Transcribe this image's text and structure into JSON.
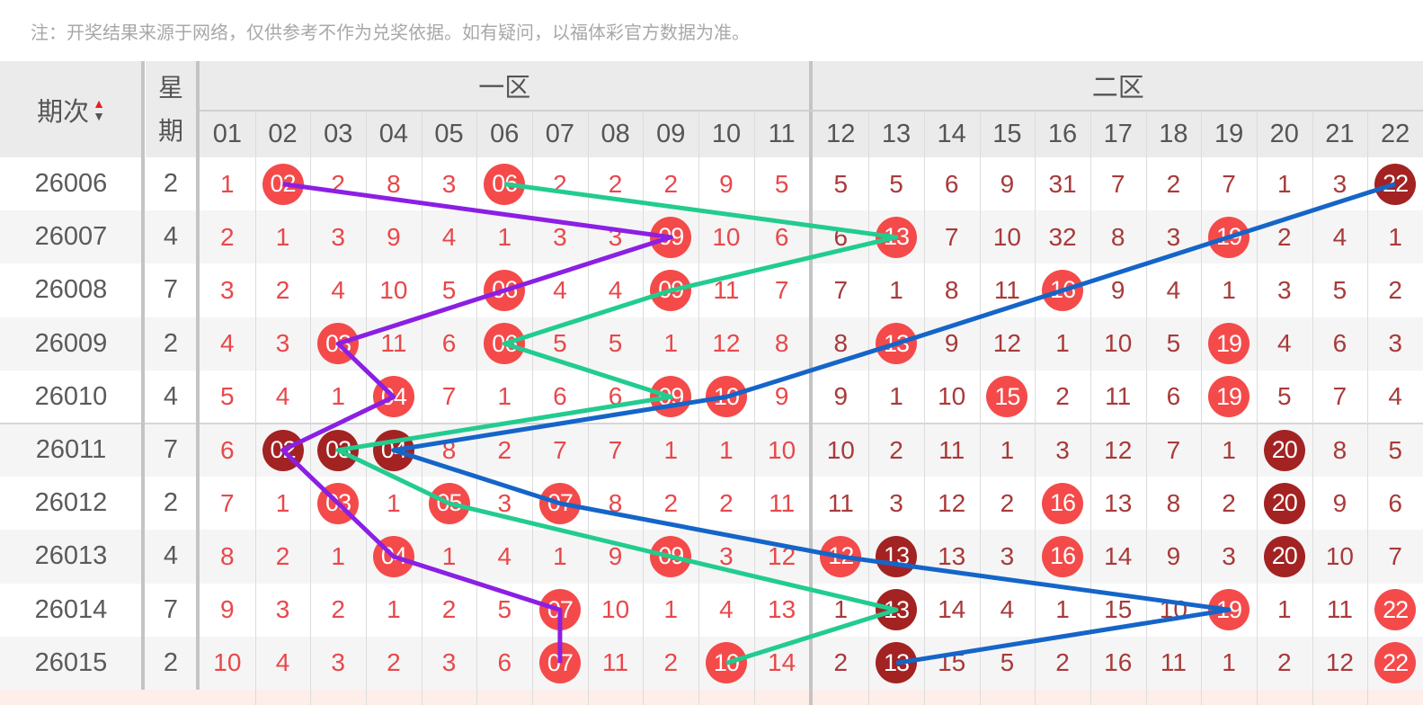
{
  "note": "注：开奖结果来源于网络，仅供参考不作为兑奖依据。如有疑问，以福体彩官方数据为准。",
  "header": {
    "period_label": "期次",
    "sort_icon": "sort-up-down-icon",
    "week_label_1": "星",
    "week_label_2": "期",
    "zone1_label": "一区",
    "zone2_label": "二区",
    "numbers": [
      "01",
      "02",
      "03",
      "04",
      "05",
      "06",
      "07",
      "08",
      "09",
      "10",
      "11",
      "12",
      "13",
      "14",
      "15",
      "16",
      "17",
      "18",
      "19",
      "20",
      "21",
      "22"
    ]
  },
  "colors": {
    "zone1_text": "#e8484b",
    "zone2_text": "#a83a3a",
    "ball_red": "#f44a4a",
    "ball_dark": "#a32222",
    "row_alt": "#f5f5f5",
    "header_bg": "#ebebeb"
  },
  "rows": [
    {
      "period": "26006",
      "week": "2",
      "cells": [
        "1",
        "02",
        "2",
        "8",
        "3",
        "06",
        "2",
        "2",
        "2",
        "9",
        "5",
        "5",
        "5",
        "6",
        "9",
        "31",
        "7",
        "2",
        "7",
        "1",
        "3",
        "22"
      ],
      "hits": {
        "02": "red",
        "06": "red",
        "22": "dark"
      }
    },
    {
      "period": "26007",
      "week": "4",
      "cells": [
        "2",
        "1",
        "3",
        "9",
        "4",
        "1",
        "3",
        "3",
        "09",
        "10",
        "6",
        "6",
        "13",
        "7",
        "10",
        "32",
        "8",
        "3",
        "19",
        "2",
        "4",
        "1"
      ],
      "hits": {
        "09": "red",
        "13": "red",
        "19": "red"
      }
    },
    {
      "period": "26008",
      "week": "7",
      "cells": [
        "3",
        "2",
        "4",
        "10",
        "5",
        "06",
        "4",
        "4",
        "09",
        "11",
        "7",
        "7",
        "1",
        "8",
        "11",
        "16",
        "9",
        "4",
        "1",
        "3",
        "5",
        "2"
      ],
      "hits": {
        "06": "red",
        "09": "red",
        "16": "red"
      }
    },
    {
      "period": "26009",
      "week": "2",
      "cells": [
        "4",
        "3",
        "03",
        "11",
        "6",
        "06",
        "5",
        "5",
        "1",
        "12",
        "8",
        "8",
        "13",
        "9",
        "12",
        "1",
        "10",
        "5",
        "19",
        "4",
        "6",
        "3"
      ],
      "hits": {
        "03": "red",
        "06": "red",
        "13": "red",
        "19": "red"
      }
    },
    {
      "period": "26010",
      "week": "4",
      "cells": [
        "5",
        "4",
        "1",
        "04",
        "7",
        "1",
        "6",
        "6",
        "09",
        "10",
        "9",
        "9",
        "1",
        "10",
        "15",
        "2",
        "11",
        "6",
        "19",
        "5",
        "7",
        "4"
      ],
      "hits": {
        "04": "red",
        "09": "red",
        "10": "red",
        "15": "red",
        "19": "red"
      }
    },
    {
      "period": "26011",
      "week": "7",
      "cells": [
        "6",
        "02",
        "03",
        "04",
        "8",
        "2",
        "7",
        "7",
        "1",
        "1",
        "10",
        "10",
        "2",
        "11",
        "1",
        "3",
        "12",
        "7",
        "1",
        "20",
        "8",
        "5"
      ],
      "hits": {
        "02": "dark",
        "03": "dark",
        "04": "dark",
        "20": "dark"
      }
    },
    {
      "period": "26012",
      "week": "2",
      "cells": [
        "7",
        "1",
        "03",
        "1",
        "05",
        "3",
        "07",
        "8",
        "2",
        "2",
        "11",
        "11",
        "3",
        "12",
        "2",
        "16",
        "13",
        "8",
        "2",
        "20",
        "9",
        "6"
      ],
      "hits": {
        "03": "red",
        "05": "red",
        "07": "red",
        "16": "red",
        "20": "dark"
      }
    },
    {
      "period": "26013",
      "week": "4",
      "cells": [
        "8",
        "2",
        "1",
        "04",
        "1",
        "4",
        "1",
        "9",
        "09",
        "3",
        "12",
        "12",
        "13",
        "13",
        "3",
        "16",
        "14",
        "9",
        "3",
        "20",
        "10",
        "7"
      ],
      "hits": {
        "04": "red",
        "09": "red",
        "12": "red",
        "13": "dark",
        "16": "red",
        "20": "dark"
      }
    },
    {
      "period": "26014",
      "week": "7",
      "cells": [
        "9",
        "3",
        "2",
        "1",
        "2",
        "5",
        "07",
        "10",
        "1",
        "4",
        "13",
        "1",
        "13",
        "14",
        "4",
        "1",
        "15",
        "10",
        "19",
        "1",
        "11",
        "22"
      ],
      "hits": {
        "07": "red",
        "13": "dark",
        "19": "red",
        "22": "red"
      }
    },
    {
      "period": "26015",
      "week": "2",
      "cells": [
        "10",
        "4",
        "3",
        "2",
        "3",
        "6",
        "07",
        "11",
        "2",
        "10",
        "14",
        "2",
        "13",
        "15",
        "5",
        "2",
        "16",
        "11",
        "1",
        "2",
        "12",
        "22"
      ],
      "hits": {
        "07": "red",
        "10": "red",
        "13": "dark",
        "22": "red"
      }
    }
  ],
  "trend_lines": [
    {
      "color": "#8b1fe3",
      "points": [
        "02",
        "09",
        "06",
        "03",
        "04",
        "02",
        "03",
        "04",
        "07",
        "07"
      ]
    },
    {
      "color": "#22cc8f",
      "points": [
        "06",
        "13",
        "09",
        "06",
        "09",
        "03",
        "05",
        "09",
        "13",
        "10"
      ]
    },
    {
      "color": "#1565c8",
      "points": [
        "22",
        "19",
        "16",
        "13",
        "10",
        "04",
        "07",
        "12",
        "19",
        "13"
      ]
    }
  ]
}
